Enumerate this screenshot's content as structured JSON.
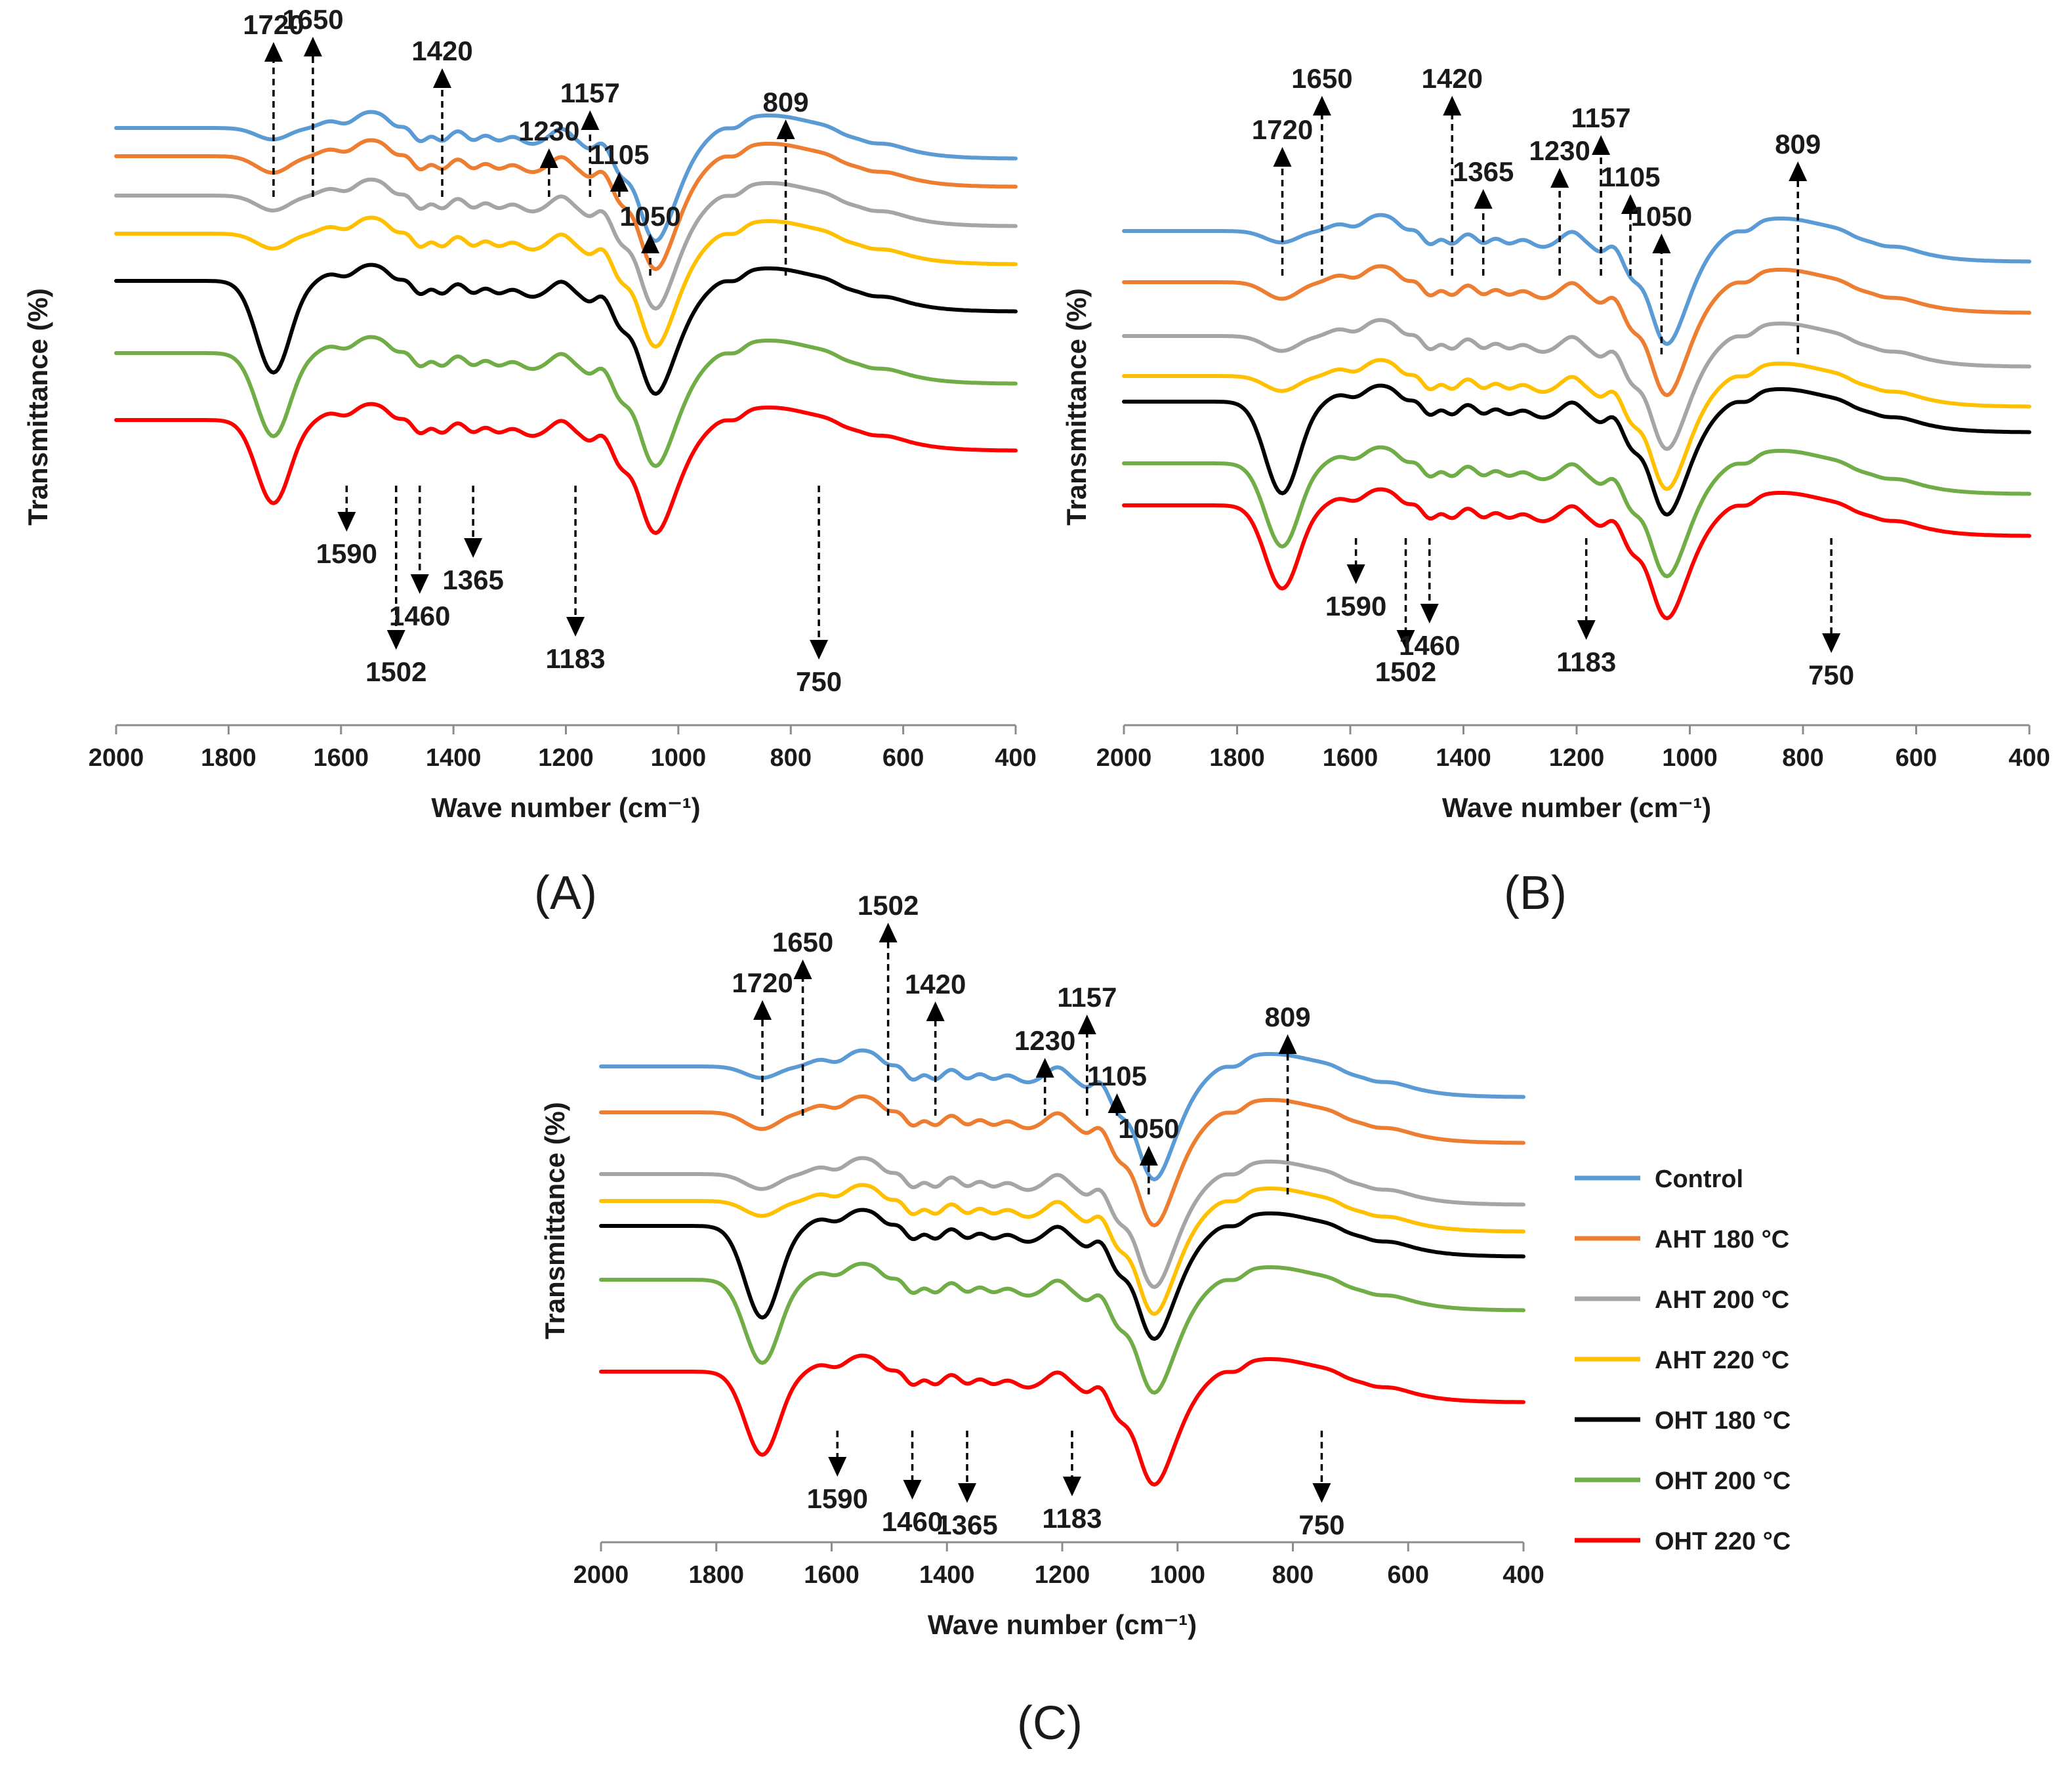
{
  "chart_data": [
    {
      "type": "line",
      "panel_label": "(A)",
      "xlabel": "Wave number (cm⁻¹)",
      "ylabel": "Transmittance (%)",
      "xlim": [
        2000,
        400
      ],
      "x_ticks": [
        "2000",
        "1800",
        "1600",
        "1400",
        "1200",
        "1000",
        "800",
        "600",
        "400"
      ],
      "grid": false,
      "series": [
        "Control",
        "AHT 180 °C",
        "AHT 200 °C",
        "AHT 220 °C",
        "OHT 180 °C",
        "OHT 200 °C",
        "OHT 220 °C"
      ],
      "annotations_up": [
        {
          "text": "1720",
          "x": 1720
        },
        {
          "text": "1650",
          "x": 1650
        },
        {
          "text": "1420",
          "x": 1420
        },
        {
          "text": "1230",
          "x": 1230
        },
        {
          "text": "1157",
          "x": 1157
        },
        {
          "text": "1105",
          "x": 1105
        },
        {
          "text": "1050",
          "x": 1050
        },
        {
          "text": "809",
          "x": 809
        }
      ],
      "annotations_down": [
        {
          "text": "1590",
          "x": 1590
        },
        {
          "text": "1502",
          "x": 1502
        },
        {
          "text": "1460",
          "x": 1460
        },
        {
          "text": "1365",
          "x": 1365
        },
        {
          "text": "1183",
          "x": 1183
        },
        {
          "text": "750",
          "x": 750
        }
      ]
    },
    {
      "type": "line",
      "panel_label": "(B)",
      "xlabel": "Wave number (cm⁻¹)",
      "ylabel": "Transmittance (%)",
      "xlim": [
        2000,
        400
      ],
      "x_ticks": [
        "2000",
        "1800",
        "1600",
        "1400",
        "1200",
        "1000",
        "800",
        "600",
        "400"
      ],
      "grid": false,
      "series": [
        "Control",
        "AHT 180 °C",
        "AHT 200 °C",
        "AHT 220 °C",
        "OHT 180 °C",
        "OHT 200 °C",
        "OHT 220 °C"
      ],
      "annotations_up": [
        {
          "text": "1720",
          "x": 1720
        },
        {
          "text": "1650",
          "x": 1650
        },
        {
          "text": "1420",
          "x": 1420
        },
        {
          "text": "1365",
          "x": 1365
        },
        {
          "text": "1230",
          "x": 1230
        },
        {
          "text": "1157",
          "x": 1157
        },
        {
          "text": "1105",
          "x": 1105
        },
        {
          "text": "1050",
          "x": 1050
        },
        {
          "text": "809",
          "x": 809
        }
      ],
      "annotations_down": [
        {
          "text": "1590",
          "x": 1590
        },
        {
          "text": "1502",
          "x": 1502
        },
        {
          "text": "1460",
          "x": 1460
        },
        {
          "text": "1183",
          "x": 1183
        },
        {
          "text": "750",
          "x": 750
        }
      ]
    },
    {
      "type": "line",
      "panel_label": "(C)",
      "xlabel": "Wave number (cm⁻¹)",
      "ylabel": "Transmittance (%)",
      "xlim": [
        2000,
        400
      ],
      "x_ticks": [
        "2000",
        "1800",
        "1600",
        "1400",
        "1200",
        "1000",
        "800",
        "600",
        "400"
      ],
      "grid": false,
      "series": [
        "Control",
        "AHT 180 °C",
        "AHT 200 °C",
        "AHT 220 °C",
        "OHT 180 °C",
        "OHT 200 °C",
        "OHT 220 °C"
      ],
      "annotations_up": [
        {
          "text": "1720",
          "x": 1720
        },
        {
          "text": "1650",
          "x": 1650
        },
        {
          "text": "1502",
          "x": 1502
        },
        {
          "text": "1420",
          "x": 1420
        },
        {
          "text": "1230",
          "x": 1230
        },
        {
          "text": "1157",
          "x": 1157
        },
        {
          "text": "1105",
          "x": 1105
        },
        {
          "text": "1050",
          "x": 1050
        },
        {
          "text": "809",
          "x": 809
        }
      ],
      "annotations_down": [
        {
          "text": "1590",
          "x": 1590
        },
        {
          "text": "1460",
          "x": 1460
        },
        {
          "text": "1365",
          "x": 1365
        },
        {
          "text": "1183",
          "x": 1183
        },
        {
          "text": "750",
          "x": 750
        }
      ]
    }
  ],
  "legend": {
    "placement": "right of panel C",
    "entries": [
      {
        "name": "Control",
        "color": "#5b9bd5"
      },
      {
        "name": "AHT 180 °C",
        "color": "#ed7d31"
      },
      {
        "name": "AHT 200 °C",
        "color": "#a5a5a5"
      },
      {
        "name": "AHT 220 °C",
        "color": "#ffc000"
      },
      {
        "name": "OHT 180 °C",
        "color": "#000000"
      },
      {
        "name": "OHT 200 °C",
        "color": "#70ad47"
      },
      {
        "name": "OHT 220 °C",
        "color": "#ff0000"
      }
    ]
  }
}
